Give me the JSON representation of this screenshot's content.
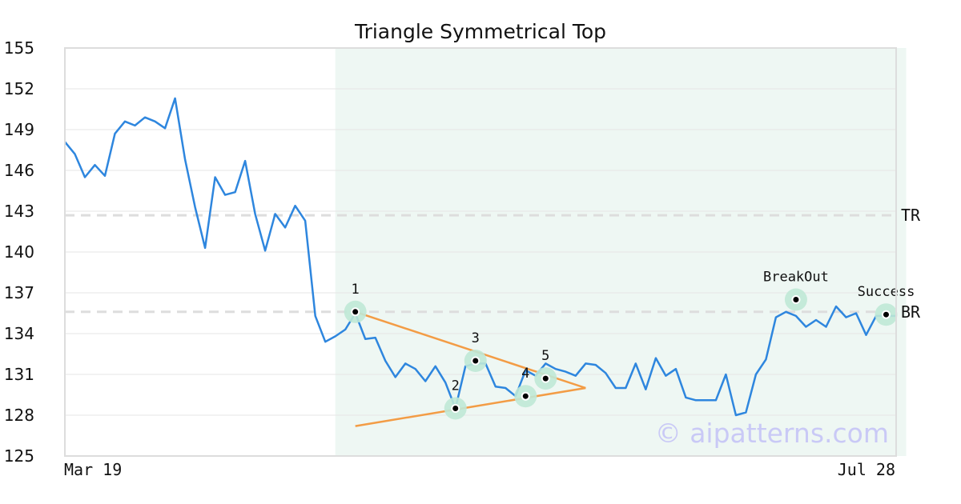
{
  "chart_data": {
    "type": "line",
    "title": "Triangle Symmetrical Top",
    "x_start_label": "Mar 19",
    "x_end_label": "Jul 28",
    "ylim": [
      125,
      155
    ],
    "y_ticks": [
      "125",
      "128",
      "131",
      "134",
      "137",
      "140",
      "143",
      "146",
      "149",
      "152",
      "155"
    ],
    "grid": true,
    "price_series": [
      148.1,
      147.2,
      145.5,
      146.4,
      145.6,
      148.7,
      149.6,
      149.3,
      149.9,
      149.6,
      149.1,
      151.3,
      146.8,
      143.3,
      140.3,
      145.5,
      144.2,
      144.4,
      146.7,
      142.8,
      140.1,
      142.8,
      141.8,
      143.4,
      142.3,
      135.3,
      133.4,
      133.8,
      134.3,
      135.5,
      133.6,
      133.7,
      132.0,
      130.8,
      131.8,
      131.4,
      130.5,
      131.6,
      130.4,
      128.5,
      131.6,
      131.8,
      131.8,
      130.1,
      130.0,
      129.4,
      131.3,
      130.9,
      131.8,
      131.4,
      131.2,
      130.9,
      131.8,
      131.7,
      131.1,
      130.0,
      130.0,
      131.8,
      129.9,
      132.2,
      130.9,
      131.4,
      129.3,
      129.1,
      129.1,
      129.1,
      131.0,
      128.0,
      128.2,
      131.0,
      132.1,
      135.2,
      135.6,
      135.3,
      134.5,
      135.0,
      134.5,
      136.0,
      135.2,
      135.5,
      133.9,
      135.3,
      135.3,
      135.3
    ],
    "pattern_region": {
      "start_index": 27,
      "end_index": 84
    },
    "horizontal_levels": [
      {
        "name": "TR",
        "value": 142.7
      },
      {
        "name": "BR",
        "value": 135.6
      }
    ],
    "trend_lines": [
      {
        "from": [
          29,
          135.6
        ],
        "to": [
          52,
          130.0
        ]
      },
      {
        "from": [
          29,
          127.2
        ],
        "to": [
          52,
          130.0
        ]
      }
    ],
    "points": [
      {
        "label": "1",
        "index": 29,
        "value": 135.6,
        "label_side": "above"
      },
      {
        "label": "2",
        "index": 39,
        "value": 128.5,
        "label_side": "above"
      },
      {
        "label": "3",
        "index": 41,
        "value": 132.0,
        "label_side": "above"
      },
      {
        "label": "4",
        "index": 46,
        "value": 129.4,
        "label_side": "above"
      },
      {
        "label": "5",
        "index": 48,
        "value": 130.7,
        "label_side": "above"
      },
      {
        "label": "BreakOut",
        "index": 73,
        "value": 136.5,
        "label_side": "above"
      },
      {
        "label": "Success",
        "index": 82,
        "value": 135.4,
        "label_side": "above"
      }
    ],
    "colors": {
      "price_line": "#2e86de",
      "trend_line": "#f39c45",
      "pattern_fill": "#eef7f3",
      "marker_halo": "#bfe8d6",
      "marker_dot": "#000000",
      "level_line": "#dddddd",
      "grid": "#e6e6e6",
      "frame": "#dddddd"
    },
    "watermark": "© aipatterns.com"
  }
}
